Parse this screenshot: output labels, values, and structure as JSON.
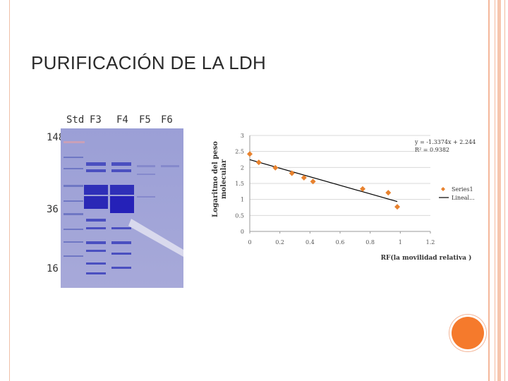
{
  "slide": {
    "title": "PURIFICACIÓN DE LA LDH"
  },
  "gel": {
    "lanes": [
      "Std",
      "F3",
      "F4",
      "F5",
      "F6"
    ],
    "markers": [
      "148",
      "36",
      "16"
    ]
  },
  "chart_data": {
    "type": "scatter",
    "title": "",
    "xlabel": "RF(la movilidad relativa )",
    "ylabel": "Logaritmo del peso molecular",
    "xlim": [
      0,
      1.2
    ],
    "ylim": [
      0,
      3
    ],
    "xticks": [
      "0",
      "0.2",
      "0.4",
      "0.6",
      "0.8",
      "1",
      "1.2"
    ],
    "yticks": [
      "0",
      "0.5",
      "1",
      "1.5",
      "2",
      "2.5",
      "3"
    ],
    "series": [
      {
        "name": "Series1",
        "x": [
          0.0,
          0.06,
          0.17,
          0.28,
          0.36,
          0.42,
          0.75,
          0.92,
          0.98
        ],
        "y": [
          2.42,
          2.16,
          1.99,
          1.82,
          1.68,
          1.56,
          1.33,
          1.21,
          0.77
        ]
      }
    ],
    "trendline": {
      "name": "Lineal...",
      "slope": -1.3374,
      "intercept": 2.244,
      "x_range": [
        0,
        0.98
      ]
    },
    "equation_text": "y = -1.3374x + 2.244",
    "r2_text": "R² = 0.9382",
    "legend_position": "right",
    "grid": true,
    "colors": {
      "points": "#e8822e",
      "line": "#000000",
      "grid": "#d8d8d8"
    }
  }
}
